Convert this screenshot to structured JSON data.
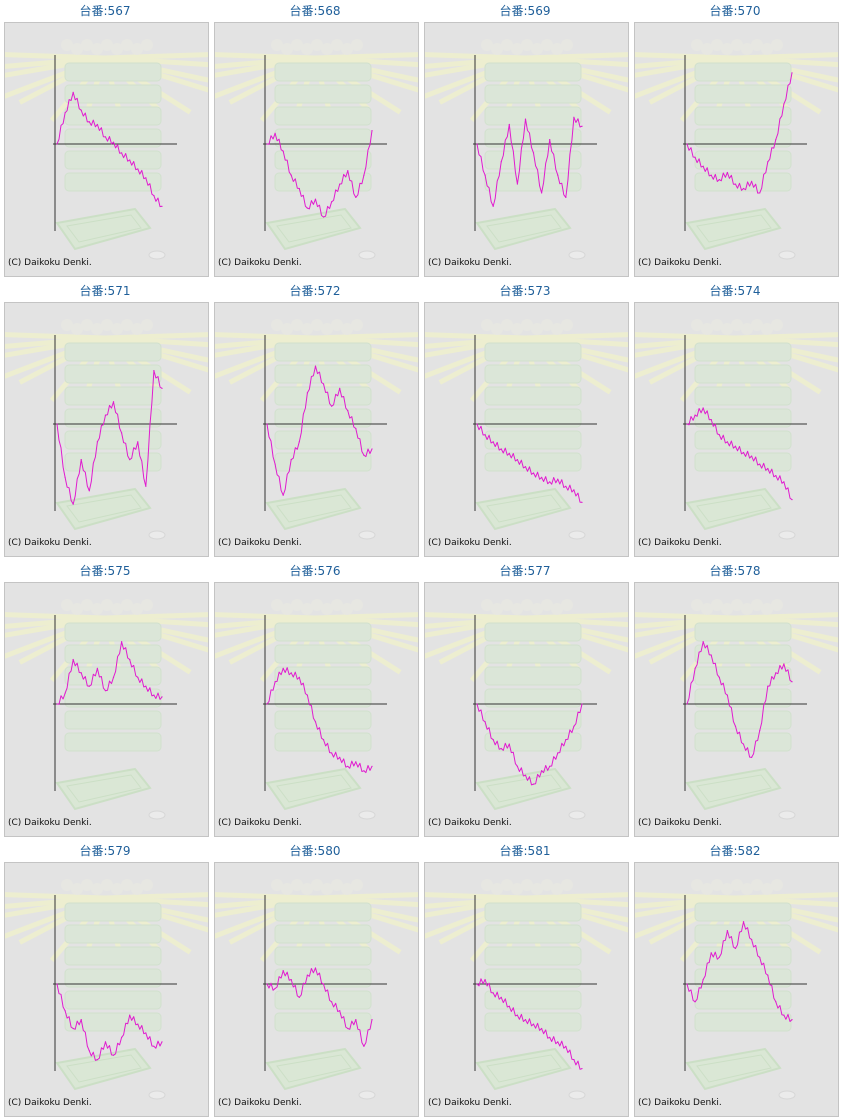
{
  "page": {
    "title_prefix": "台番:"
  },
  "copyright": "(C) Daikoku Denki.",
  "colors": {
    "line": "#e01ccf",
    "axis": "#333333",
    "bg": "#e3e3e3",
    "title": "#1f5f9a"
  },
  "chart_data": [
    {
      "type": "line",
      "title": "台番:567",
      "xlabel": "",
      "ylabel": "",
      "ylim": [
        -100,
        100
      ],
      "values": [
        0,
        35,
        58,
        38,
        25,
        22,
        8,
        2,
        -10,
        -18,
        -28,
        -38,
        -58,
        -70
      ]
    },
    {
      "type": "line",
      "title": "台番:568",
      "xlabel": "",
      "ylabel": "",
      "ylim": [
        -100,
        100
      ],
      "values": [
        0,
        12,
        -8,
        -35,
        -50,
        -72,
        -62,
        -82,
        -65,
        -45,
        -30,
        -60,
        -35,
        15
      ]
    },
    {
      "type": "line",
      "title": "台番:569",
      "xlabel": "",
      "ylabel": "",
      "ylim": [
        -100,
        100
      ],
      "values": [
        0,
        -35,
        -70,
        -20,
        22,
        -45,
        28,
        -10,
        -55,
        5,
        -35,
        -60,
        30,
        20
      ]
    },
    {
      "type": "line",
      "title": "台番:570",
      "xlabel": "",
      "ylabel": "",
      "ylim": [
        -100,
        100
      ],
      "values": [
        0,
        -15,
        -25,
        -35,
        -40,
        -32,
        -45,
        -50,
        -42,
        -55,
        -20,
        5,
        45,
        80
      ]
    },
    {
      "type": "line",
      "title": "台番:571",
      "xlabel": "",
      "ylabel": "",
      "ylim": [
        -100,
        100
      ],
      "values": [
        0,
        -60,
        -90,
        -40,
        -75,
        -20,
        10,
        25,
        -10,
        -40,
        -20,
        -70,
        60,
        40
      ]
    },
    {
      "type": "line",
      "title": "台番:572",
      "xlabel": "",
      "ylabel": "",
      "ylim": [
        -100,
        100
      ],
      "values": [
        0,
        -45,
        -80,
        -40,
        -20,
        35,
        65,
        45,
        20,
        40,
        15,
        -5,
        -35,
        -28
      ]
    },
    {
      "type": "line",
      "title": "台番:573",
      "xlabel": "",
      "ylabel": "",
      "ylim": [
        -100,
        100
      ],
      "values": [
        0,
        -12,
        -20,
        -28,
        -33,
        -40,
        -48,
        -55,
        -60,
        -65,
        -62,
        -70,
        -74,
        -88
      ]
    },
    {
      "type": "line",
      "title": "台番:574",
      "xlabel": "",
      "ylabel": "",
      "ylim": [
        -100,
        100
      ],
      "values": [
        0,
        10,
        18,
        5,
        -12,
        -20,
        -25,
        -32,
        -36,
        -45,
        -50,
        -58,
        -65,
        -85
      ]
    },
    {
      "type": "line",
      "title": "台番:575",
      "xlabel": "",
      "ylabel": "",
      "ylim": [
        -100,
        100
      ],
      "values": [
        0,
        12,
        50,
        35,
        20,
        40,
        15,
        30,
        70,
        50,
        30,
        20,
        10,
        8
      ]
    },
    {
      "type": "line",
      "title": "台番:576",
      "xlabel": "",
      "ylabel": "",
      "ylim": [
        -100,
        100
      ],
      "values": [
        0,
        25,
        40,
        35,
        30,
        10,
        -20,
        -40,
        -55,
        -60,
        -70,
        -65,
        -75,
        -70
      ]
    },
    {
      "type": "line",
      "title": "台番:577",
      "xlabel": "",
      "ylabel": "",
      "ylim": [
        -100,
        100
      ],
      "values": [
        0,
        -20,
        -40,
        -50,
        -45,
        -70,
        -80,
        -90,
        -75,
        -70,
        -55,
        -40,
        -25,
        0
      ]
    },
    {
      "type": "line",
      "title": "台番:578",
      "xlabel": "",
      "ylabel": "",
      "ylim": [
        -100,
        100
      ],
      "values": [
        0,
        40,
        70,
        55,
        30,
        10,
        -25,
        -45,
        -60,
        -30,
        20,
        35,
        45,
        25
      ]
    },
    {
      "type": "line",
      "title": "台番:579",
      "xlabel": "",
      "ylabel": "",
      "ylim": [
        -100,
        100
      ],
      "values": [
        0,
        -30,
        -50,
        -40,
        -75,
        -85,
        -65,
        -80,
        -60,
        -35,
        -45,
        -55,
        -70,
        -65
      ]
    },
    {
      "type": "line",
      "title": "台番:580",
      "xlabel": "",
      "ylabel": "",
      "ylim": [
        -100,
        100
      ],
      "values": [
        0,
        -5,
        15,
        5,
        -15,
        10,
        18,
        0,
        -20,
        -30,
        -50,
        -40,
        -70,
        -40
      ]
    },
    {
      "type": "line",
      "title": "台番:581",
      "xlabel": "",
      "ylabel": "",
      "ylim": [
        -100,
        100
      ],
      "values": [
        0,
        5,
        -10,
        -15,
        -25,
        -35,
        -40,
        -45,
        -50,
        -60,
        -65,
        -70,
        -85,
        -95
      ]
    },
    {
      "type": "line",
      "title": "台番:582",
      "xlabel": "",
      "ylabel": "",
      "ylim": [
        -100,
        100
      ],
      "values": [
        0,
        -20,
        5,
        35,
        30,
        60,
        40,
        70,
        50,
        30,
        10,
        -20,
        -35,
        -40
      ]
    }
  ]
}
